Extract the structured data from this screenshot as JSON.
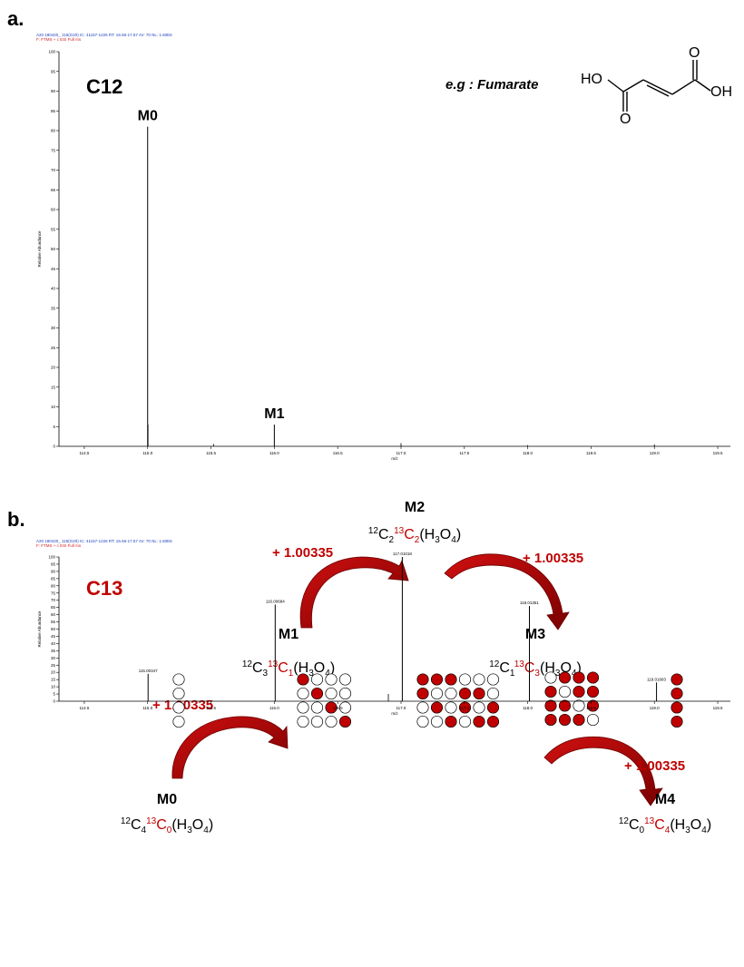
{
  "colors": {
    "accent": "#c00000",
    "arrow_dark": "#7a0000",
    "header_blue": "#1f3fbf",
    "header_red": "#d42020",
    "text": "#000000"
  },
  "panel_a": {
    "label": "a.",
    "tag": "C12",
    "example_label": "e.g : Fumarate",
    "header_line1": "A20 180420_ 115(G20) IC: 41157-1226  RT: 16.56-17.57  AV: 70  NL: 1.60E6",
    "header_line2": "F: FTMS + c ESI Full ms",
    "molecule": {
      "oh_left": "HO",
      "oh_right": "OH",
      "o_top": "O",
      "o_bottom": "O"
    }
  },
  "panel_b": {
    "label": "b.",
    "tag": "C13",
    "header_line1": "A20 180420_ 115(G20) IC: 41157-1226  RT: 16.56-17.57  AV: 70  NL: 1.60E6",
    "header_line2": "F: FTMS + c ESI Full ms",
    "shift_text": "+ 1.00335",
    "formulas": [
      {
        "c12": "4",
        "c13": "0"
      },
      {
        "c12": "3",
        "c13": "1"
      },
      {
        "c12": "2",
        "c13": "2"
      },
      {
        "c12": "1",
        "c13": "3"
      },
      {
        "c12": "0",
        "c13": "4"
      }
    ],
    "formula_tail_parts": [
      "(H",
      "3",
      "O",
      "4",
      ")"
    ]
  },
  "chart_data": [
    {
      "type": "bar",
      "title": "",
      "xlabel": "m/z",
      "ylabel": "Relative Abundance",
      "xlim": [
        114.3,
        119.6
      ],
      "ylim": [
        0,
        100
      ],
      "xticks": [
        114.5,
        115.0,
        115.5,
        116.0,
        116.5,
        117.0,
        117.5,
        118.0,
        118.5,
        119.0,
        119.5
      ],
      "yticks": [
        0,
        5,
        10,
        15,
        20,
        25,
        30,
        35,
        40,
        45,
        50,
        55,
        60,
        65,
        70,
        75,
        80,
        85,
        90,
        95,
        100
      ],
      "peaks": [
        {
          "label": "M0",
          "mz": 115.0,
          "intensity": 81
        },
        {
          "label": "M1",
          "mz": 116.0,
          "intensity": 5.5
        }
      ],
      "minor_peaks": [
        {
          "mz": 115.003,
          "intensity": 5.5
        },
        {
          "mz": 115.52,
          "intensity": 0.6
        },
        {
          "mz": 117.0,
          "intensity": 0.8
        },
        {
          "mz": 118.0,
          "intensity": 0.3
        },
        {
          "mz": 119.0,
          "intensity": 0.5
        }
      ]
    },
    {
      "type": "bar",
      "title": "",
      "xlabel": "m/z",
      "ylabel": "Relative Abundance",
      "xlim": [
        114.3,
        119.6
      ],
      "ylim": [
        0,
        100
      ],
      "xticks": [
        114.5,
        115.0,
        115.5,
        116.0,
        116.5,
        117.0,
        117.5,
        118.0,
        118.5,
        119.0,
        119.5
      ],
      "yticks": [
        0,
        5,
        10,
        15,
        20,
        25,
        30,
        35,
        40,
        45,
        50,
        55,
        60,
        65,
        70,
        75,
        80,
        85,
        90,
        95,
        100
      ],
      "peaks": [
        {
          "label": "M0",
          "mz": 115.00347,
          "mz_label": "115.00347",
          "intensity": 19
        },
        {
          "label": "M1",
          "mz": 116.00684,
          "mz_label": "116.00684",
          "intensity": 67
        },
        {
          "label": "M2",
          "mz": 117.01018,
          "mz_label": "117.01018",
          "intensity": 100
        },
        {
          "label": "M3",
          "mz": 118.01351,
          "mz_label": "118.01351",
          "intensity": 66
        },
        {
          "label": "M4",
          "mz": 119.01683,
          "mz_label": "119.01683",
          "intensity": 13
        }
      ],
      "minor_peaks": [
        {
          "mz": 116.9,
          "intensity": 5
        }
      ]
    }
  ]
}
